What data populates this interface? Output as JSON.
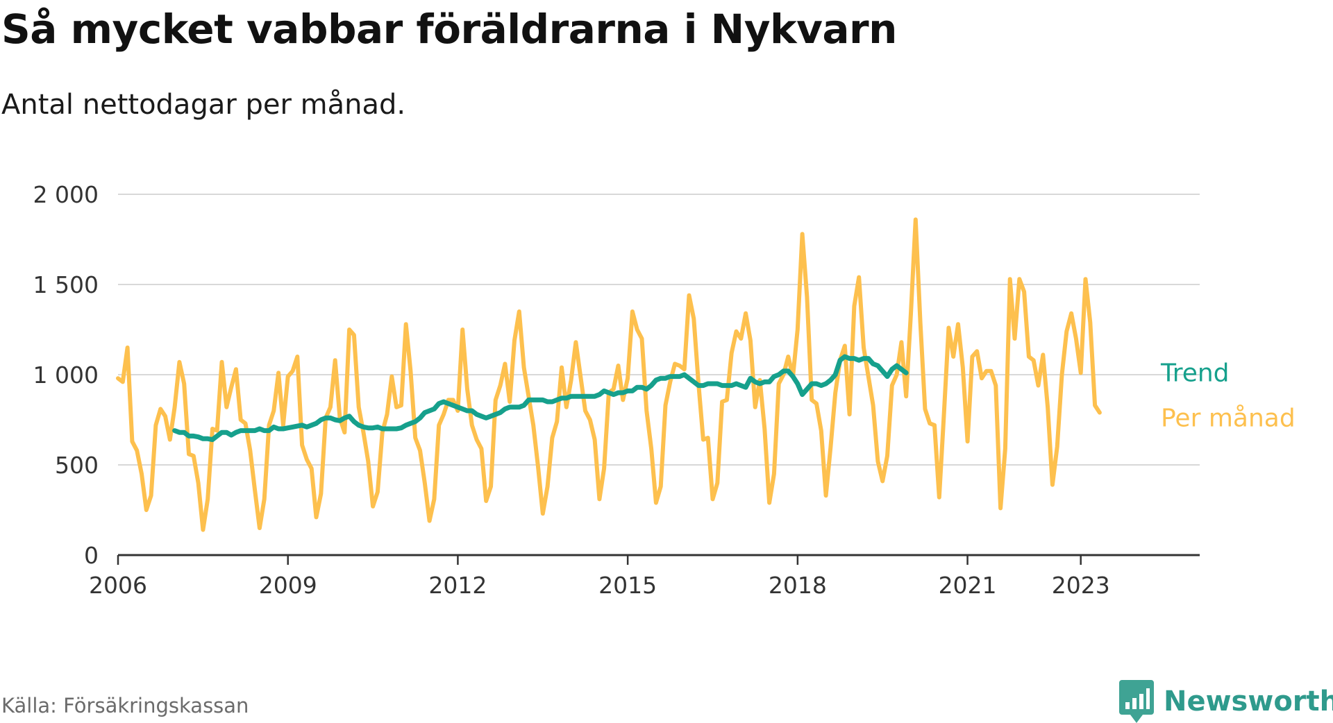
{
  "title": "Så mycket vabbar föräldrarna i Nykvarn",
  "subtitle": "Antal nettodagar per månad.",
  "source": "Källa: Försäkringskassan",
  "brand": {
    "name": "Newsworthy",
    "icon": "newsworthy-chart-bubble-icon"
  },
  "colors": {
    "monthly": "#fdc04e",
    "trend": "#16a08c",
    "grid": "#d8d8d8",
    "axis": "#333333",
    "brand": "#2f9a8c"
  },
  "chart_data": {
    "type": "line",
    "title": "Så mycket vabbar föräldrarna i Nykvarn",
    "subtitle": "Antal nettodagar per månad.",
    "x_ticks": [
      "2006",
      "2009",
      "2012",
      "2015",
      "2018",
      "2021",
      "2023"
    ],
    "y_ticks": [
      "0",
      "500",
      "1 000",
      "1 500",
      "2 000"
    ],
    "x_range": [
      2006.0,
      2025.1
    ],
    "ylim": [
      0,
      2000
    ],
    "grid": "horizontal",
    "legend": "direct labels at line ends",
    "series": [
      {
        "name": "Per månad",
        "color": "#fdc04e",
        "x_start": "2006-01",
        "frequency": "monthly",
        "values": [
          980,
          960,
          1150,
          630,
          580,
          450,
          250,
          330,
          720,
          810,
          770,
          640,
          820,
          1070,
          950,
          560,
          550,
          400,
          140,
          310,
          700,
          690,
          1070,
          820,
          930,
          1030,
          750,
          730,
          580,
          360,
          150,
          310,
          720,
          800,
          1010,
          720,
          990,
          1020,
          1100,
          610,
          530,
          480,
          210,
          340,
          760,
          820,
          1080,
          760,
          680,
          1250,
          1220,
          820,
          680,
          520,
          270,
          350,
          680,
          780,
          990,
          820,
          830,
          1280,
          1020,
          650,
          580,
          400,
          190,
          310,
          720,
          780,
          860,
          860,
          800,
          1250,
          920,
          720,
          640,
          590,
          300,
          380,
          860,
          940,
          1060,
          850,
          1190,
          1350,
          1040,
          880,
          720,
          490,
          230,
          380,
          650,
          740,
          1040,
          820,
          970,
          1180,
          990,
          800,
          750,
          640,
          310,
          480,
          900,
          920,
          1050,
          860,
          980,
          1350,
          1250,
          1200,
          800,
          590,
          290,
          380,
          830,
          960,
          1060,
          1050,
          1030,
          1440,
          1310,
          950,
          640,
          650,
          310,
          400,
          850,
          860,
          1120,
          1240,
          1200,
          1340,
          1190,
          820,
          970,
          700,
          290,
          450,
          950,
          1000,
          1100,
          990,
          1250,
          1780,
          1430,
          860,
          840,
          690,
          330,
          600,
          900,
          1080,
          1160,
          780,
          1380,
          1540,
          1150,
          990,
          830,
          520,
          410,
          550,
          940,
          1000,
          1180,
          880,
          1340,
          1860,
          1290,
          810,
          730,
          720,
          320,
          780,
          1260,
          1100,
          1280,
          1040,
          630,
          1100,
          1130,
          980,
          1020,
          1020,
          940,
          260,
          590,
          1530,
          1200,
          1530,
          1460,
          1100,
          1080,
          940,
          1110,
          820,
          390,
          600,
          1000,
          1240,
          1340,
          1200,
          1010,
          1530,
          1290,
          830,
          790
        ]
      },
      {
        "name": "Trend",
        "color": "#16a08c",
        "x_start": "2007-01",
        "frequency": "monthly",
        "values": [
          690,
          680,
          680,
          660,
          660,
          655,
          645,
          645,
          640,
          660,
          680,
          680,
          665,
          680,
          690,
          690,
          690,
          690,
          700,
          690,
          690,
          710,
          700,
          700,
          705,
          710,
          715,
          720,
          710,
          720,
          730,
          750,
          760,
          760,
          750,
          745,
          760,
          770,
          740,
          720,
          710,
          705,
          705,
          710,
          700,
          700,
          700,
          700,
          705,
          720,
          730,
          740,
          760,
          790,
          800,
          810,
          840,
          850,
          840,
          830,
          820,
          810,
          800,
          800,
          780,
          770,
          760,
          770,
          780,
          790,
          810,
          820,
          820,
          820,
          830,
          860,
          860,
          860,
          860,
          850,
          850,
          860,
          870,
          870,
          880,
          880,
          880,
          880,
          880,
          880,
          890,
          910,
          900,
          890,
          900,
          900,
          910,
          910,
          930,
          930,
          920,
          940,
          970,
          980,
          980,
          990,
          990,
          990,
          1000,
          980,
          960,
          940,
          940,
          950,
          950,
          950,
          940,
          940,
          940,
          950,
          940,
          930,
          980,
          960,
          950,
          960,
          960,
          990,
          1000,
          1020,
          1020,
          990,
          950,
          890,
          920,
          950,
          950,
          940,
          950,
          970,
          1000,
          1080,
          1100,
          1090,
          1090,
          1080,
          1090,
          1090,
          1060,
          1050,
          1020,
          990,
          1030,
          1050,
          1030,
          1010
        ]
      }
    ]
  }
}
